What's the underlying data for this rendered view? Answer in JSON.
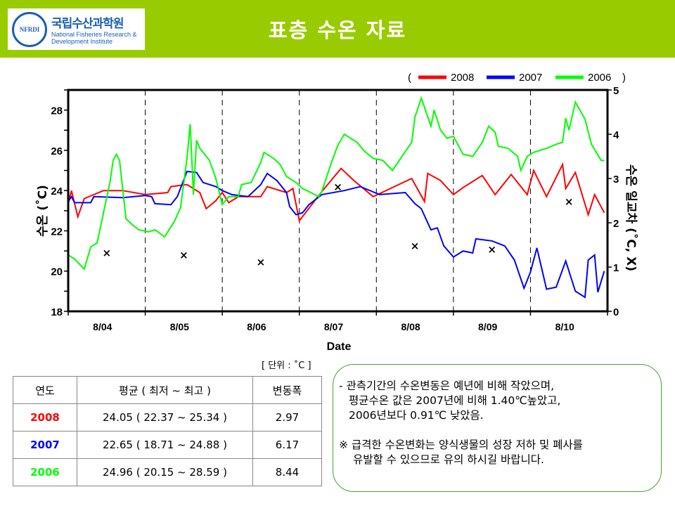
{
  "header": {
    "logo": {
      "ko": "국립수산과학원",
      "en1": "National Fisheries Research &",
      "en2": "Development Institute",
      "seal": "NFRDI"
    },
    "title": "표층 수온 자료"
  },
  "colors": {
    "header_bg": "#99cc00",
    "2008": "#ff0000",
    "2007": "#0000ff",
    "2006": "#00ff00"
  },
  "chart_data": {
    "type": "line",
    "xlabel": "Date",
    "ylabel": "수온 (˚C)",
    "y2label": "수온 일교차 (˚C, X)",
    "xlim": [
      "8/04 00:00",
      "8/11 00:00"
    ],
    "x_tick_labels": [
      "8/04",
      "8/05",
      "8/06",
      "8/07",
      "8/08",
      "8/09",
      "8/10"
    ],
    "ylim": [
      18,
      29
    ],
    "yticks": [
      18,
      20,
      22,
      24,
      26,
      28
    ],
    "y2lim": [
      0,
      5
    ],
    "y2ticks": [
      0,
      1,
      2,
      3,
      4,
      5
    ],
    "grid": "vertical dashed at day boundaries",
    "legend": {
      "placement": "top-right",
      "open": "(",
      "close": ")"
    },
    "series": [
      {
        "name": "2008",
        "color": "#ff0000",
        "points": [
          [
            "8/04 00:00",
            23.35
          ],
          [
            "8/04 01:00",
            24.0
          ],
          [
            "8/04 03:00",
            22.7
          ],
          [
            "8/04 05:00",
            23.6
          ],
          [
            "8/04 11:00",
            24.0
          ],
          [
            "8/04 17:00",
            24.0
          ],
          [
            "8/05 00:00",
            23.8
          ],
          [
            "8/05 07:00",
            23.9
          ],
          [
            "8/05 08:00",
            24.2
          ],
          [
            "8/05 13:00",
            24.3
          ],
          [
            "8/05 17:00",
            23.9
          ],
          [
            "8/05 19:00",
            23.1
          ],
          [
            "8/05 22:00",
            23.5
          ],
          [
            "8/06 00:00",
            23.9
          ],
          [
            "8/06 02:00",
            23.4
          ],
          [
            "8/06 05:00",
            23.7
          ],
          [
            "8/06 12:00",
            23.7
          ],
          [
            "8/06 14:00",
            24.2
          ],
          [
            "8/06 20:00",
            23.9
          ],
          [
            "8/06 22:00",
            24.1
          ],
          [
            "8/07 00:00",
            22.5
          ],
          [
            "8/07 07:00",
            23.95
          ],
          [
            "8/07 13:00",
            25.1
          ],
          [
            "8/07 17:00",
            24.5
          ],
          [
            "8/07 23:00",
            23.7
          ],
          [
            "8/08 05:00",
            24.15
          ],
          [
            "8/08 11:00",
            24.6
          ],
          [
            "8/08 15:00",
            23.45
          ],
          [
            "8/08 16:00",
            24.85
          ],
          [
            "8/08 20:00",
            24.5
          ],
          [
            "8/09 00:00",
            23.8
          ],
          [
            "8/09 03:00",
            24.15
          ],
          [
            "8/09 09:00",
            24.75
          ],
          [
            "8/09 13:00",
            23.8
          ],
          [
            "8/09 18:00",
            24.8
          ],
          [
            "8/09 23:00",
            23.8
          ],
          [
            "8/10 01:00",
            25.0
          ],
          [
            "8/10 05:00",
            23.7
          ],
          [
            "8/10 10:00",
            25.3
          ],
          [
            "8/10 11:00",
            24.1
          ],
          [
            "8/10 14:00",
            24.9
          ],
          [
            "8/10 18:00",
            22.8
          ],
          [
            "8/10 20:00",
            23.8
          ],
          [
            "8/10 23:00",
            22.9
          ]
        ]
      },
      {
        "name": "2007",
        "color": "#0000ff",
        "points": [
          [
            "8/04 00:00",
            23.45
          ],
          [
            "8/04 01:00",
            23.7
          ],
          [
            "8/04 02:00",
            23.4
          ],
          [
            "8/04 07:00",
            23.4
          ],
          [
            "8/04 08:00",
            23.7
          ],
          [
            "8/04 17:00",
            23.65
          ],
          [
            "8/05 00:00",
            23.75
          ],
          [
            "8/05 02:00",
            23.7
          ],
          [
            "8/05 03:00",
            23.35
          ],
          [
            "8/05 08:00",
            23.3
          ],
          [
            "8/05 10:00",
            23.7
          ],
          [
            "8/05 13:00",
            24.95
          ],
          [
            "8/05 16:00",
            24.9
          ],
          [
            "8/05 18:00",
            24.4
          ],
          [
            "8/05 22:00",
            24.2
          ],
          [
            "8/06 00:00",
            24.0
          ],
          [
            "8/06 03:00",
            23.8
          ],
          [
            "8/06 08:00",
            23.7
          ],
          [
            "8/06 12:00",
            24.3
          ],
          [
            "8/06 14:00",
            24.85
          ],
          [
            "8/06 17:00",
            24.5
          ],
          [
            "8/06 20:00",
            23.9
          ],
          [
            "8/06 21:00",
            23.2
          ],
          [
            "8/06 23:00",
            22.8
          ],
          [
            "8/07 01:00",
            22.9
          ],
          [
            "8/07 03:00",
            23.3
          ],
          [
            "8/07 07:00",
            23.8
          ],
          [
            "8/07 14:00",
            24.0
          ],
          [
            "8/07 19:00",
            24.2
          ],
          [
            "8/08 01:00",
            23.8
          ],
          [
            "8/08 09:00",
            23.9
          ],
          [
            "8/08 12:00",
            23.35
          ],
          [
            "8/08 14:00",
            23.1
          ],
          [
            "8/08 17:00",
            22.05
          ],
          [
            "8/08 19:00",
            22.15
          ],
          [
            "8/08 21:00",
            21.25
          ],
          [
            "8/09 00:00",
            20.7
          ],
          [
            "8/09 03:00",
            21.0
          ],
          [
            "8/09 06:00",
            20.9
          ],
          [
            "8/09 07:00",
            21.6
          ],
          [
            "8/09 12:00",
            21.5
          ],
          [
            "8/09 16:00",
            21.25
          ],
          [
            "8/09 19:00",
            20.55
          ],
          [
            "8/09 22:00",
            19.15
          ],
          [
            "8/10 00:00",
            19.95
          ],
          [
            "8/10 02:00",
            21.15
          ],
          [
            "8/10 05:00",
            19.1
          ],
          [
            "8/10 08:00",
            19.2
          ],
          [
            "8/10 11:00",
            20.5
          ],
          [
            "8/10 14:00",
            19.0
          ],
          [
            "8/10 17:00",
            18.7
          ],
          [
            "8/10 18:00",
            20.55
          ],
          [
            "8/10 20:00",
            20.8
          ],
          [
            "8/10 21:00",
            18.95
          ],
          [
            "8/10 23:00",
            20.0
          ]
        ]
      },
      {
        "name": "2006",
        "color": "#00ff00",
        "points": [
          [
            "8/04 00:00",
            20.8
          ],
          [
            "8/04 02:00",
            20.6
          ],
          [
            "8/04 05:00",
            20.1
          ],
          [
            "8/04 07:00",
            21.2
          ],
          [
            "8/04 09:00",
            21.4
          ],
          [
            "8/04 11:00",
            22.9
          ],
          [
            "8/04 13:00",
            24.4
          ],
          [
            "8/04 14:00",
            25.5
          ],
          [
            "8/04 15:00",
            25.8
          ],
          [
            "8/04 16:00",
            25.5
          ],
          [
            "8/04 18:00",
            22.6
          ],
          [
            "8/04 20:00",
            22.3
          ],
          [
            "8/04 22:00",
            22.05
          ],
          [
            "8/05 01:00",
            21.95
          ],
          [
            "8/05 03:00",
            22.05
          ],
          [
            "8/05 06:00",
            21.7
          ],
          [
            "8/05 09:00",
            22.45
          ],
          [
            "8/05 11:00",
            23.15
          ],
          [
            "8/05 13:00",
            25.6
          ],
          [
            "8/05 14:00",
            27.3
          ],
          [
            "8/05 15:00",
            23.8
          ],
          [
            "8/05 16:00",
            26.5
          ],
          [
            "8/05 17:00",
            26.1
          ],
          [
            "8/05 20:00",
            25.5
          ],
          [
            "8/05 22:00",
            24.6
          ],
          [
            "8/06 00:00",
            23.3
          ],
          [
            "8/06 02:00",
            23.7
          ],
          [
            "8/06 05:00",
            23.7
          ],
          [
            "8/06 06:00",
            24.3
          ],
          [
            "8/06 09:00",
            24.4
          ],
          [
            "8/06 12:00",
            25.4
          ],
          [
            "8/06 13:00",
            25.9
          ],
          [
            "8/06 16:00",
            25.6
          ],
          [
            "8/06 18:00",
            25.3
          ],
          [
            "8/06 20:00",
            24.7
          ],
          [
            "8/06 23:00",
            24.4
          ],
          [
            "8/07 01:00",
            24.1
          ],
          [
            "8/07 03:00",
            23.95
          ],
          [
            "8/07 06:00",
            23.7
          ],
          [
            "8/07 07:00",
            23.95
          ],
          [
            "8/07 10:00",
            25.4
          ],
          [
            "8/07 12:00",
            26.25
          ],
          [
            "8/07 14:00",
            26.8
          ],
          [
            "8/07 18:00",
            26.4
          ],
          [
            "8/07 20:00",
            26.0
          ],
          [
            "8/07 23:00",
            25.6
          ],
          [
            "8/08 02:00",
            25.5
          ],
          [
            "8/08 05:00",
            25.0
          ],
          [
            "8/08 11:00",
            26.4
          ],
          [
            "8/08 12:00",
            27.65
          ],
          [
            "8/08 14:00",
            28.6
          ],
          [
            "8/08 17:00",
            27.2
          ],
          [
            "8/08 18:00",
            28.0
          ],
          [
            "8/08 20:00",
            27.0
          ],
          [
            "8/08 22:00",
            26.6
          ],
          [
            "8/09 00:00",
            26.7
          ],
          [
            "8/09 03:00",
            25.8
          ],
          [
            "8/09 06:00",
            25.7
          ],
          [
            "8/09 09:00",
            26.4
          ],
          [
            "8/09 11:00",
            27.2
          ],
          [
            "8/09 13:00",
            26.9
          ],
          [
            "8/09 14:00",
            26.2
          ],
          [
            "8/09 17:00",
            26.1
          ],
          [
            "8/09 20:00",
            25.7
          ],
          [
            "8/09 21:00",
            25.0
          ],
          [
            "8/09 23:00",
            25.7
          ],
          [
            "8/10 01:00",
            25.9
          ],
          [
            "8/10 05:00",
            26.1
          ],
          [
            "8/10 08:00",
            26.3
          ],
          [
            "8/10 10:00",
            26.4
          ],
          [
            "8/10 11:00",
            27.6
          ],
          [
            "8/10 12:00",
            27.0
          ],
          [
            "8/10 14:00",
            28.4
          ],
          [
            "8/10 17:00",
            27.55
          ],
          [
            "8/10 19:00",
            26.3
          ],
          [
            "8/10 22:00",
            25.5
          ],
          [
            "8/10 23:00",
            25.5
          ]
        ]
      }
    ],
    "daily_range_markers": {
      "axis": "right",
      "marker": "x",
      "points": [
        [
          "8/04 12:00",
          1.32
        ],
        [
          "8/05 12:00",
          1.27
        ],
        [
          "8/06 12:00",
          1.11
        ],
        [
          "8/07 12:00",
          2.81
        ],
        [
          "8/08 12:00",
          1.48
        ],
        [
          "8/09 12:00",
          1.4
        ],
        [
          "8/10 12:00",
          2.48
        ]
      ]
    }
  },
  "table": {
    "unit": "[ 단위 : ˚C ]",
    "headers": [
      "연도",
      "평균 ( 최저 ~ 최고 )",
      "변동폭"
    ],
    "rows": [
      {
        "year": "2008",
        "color": "#ff0000",
        "avg": "24.05 ( 22.37 ~ 25.34 )",
        "range": "2.97"
      },
      {
        "year": "2007",
        "color": "#0000ff",
        "avg": "22.65 ( 18.71 ~ 24.88 )",
        "range": "6.17"
      },
      {
        "year": "2006",
        "color": "#00ff00",
        "avg": "24.96 ( 20.15 ~ 28.59 )",
        "range": "8.44"
      }
    ]
  },
  "note": {
    "line1": "- 관측기간의 수온변동은 예년에 비해 작았으며,",
    "line2": "평균수온 값은 2007년에 비해 1.40℃높았고,",
    "line3": "2006년보다 0.91℃ 낮았음.",
    "line4": "※ 급격한 수온변화는 양식생물의 성장 저하 및 폐사를",
    "line5": "유발할 수 있으므로 유의 하시길 바랍니다."
  }
}
